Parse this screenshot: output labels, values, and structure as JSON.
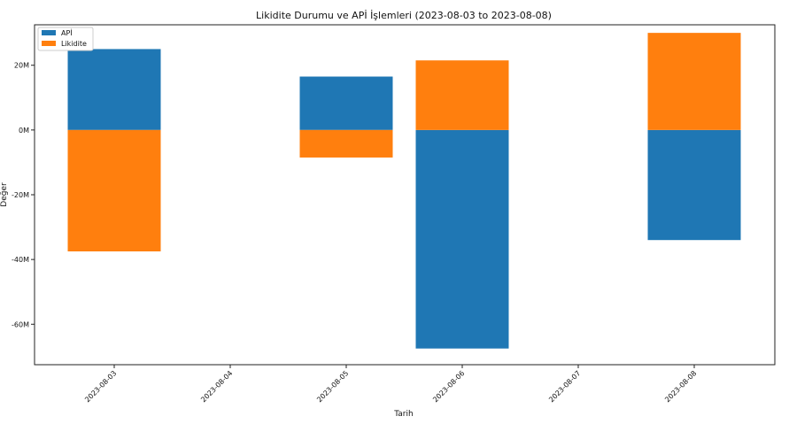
{
  "chart_data": {
    "type": "bar",
    "stacked": "diverging",
    "title": "Likidite Durumu ve APİ İşlemleri (2023-08-03 to 2023-08-08)",
    "xlabel": "Tarih",
    "ylabel": "Değer",
    "categories": [
      "2023-08-03",
      "2023-08-04",
      "2023-08-05",
      "2023-08-06",
      "2023-08-07",
      "2023-08-08"
    ],
    "series": [
      {
        "name": "APİ",
        "color": "#1f77b4",
        "values": [
          25000000,
          0,
          16500000,
          -67500000,
          0,
          -34000000
        ]
      },
      {
        "name": "Likidite",
        "color": "#ff7f0e",
        "values": [
          -37500000,
          0,
          -8500000,
          21500000,
          0,
          30000000
        ]
      }
    ],
    "ylim": [
      -72500000,
      32500000
    ],
    "yticks": [
      20000000,
      0,
      -20000000,
      -40000000,
      -60000000
    ],
    "ytick_labels": [
      "20M",
      "0M",
      "-20M",
      "-40M",
      "-60M"
    ],
    "legend_position": "top-left",
    "grid": false
  }
}
